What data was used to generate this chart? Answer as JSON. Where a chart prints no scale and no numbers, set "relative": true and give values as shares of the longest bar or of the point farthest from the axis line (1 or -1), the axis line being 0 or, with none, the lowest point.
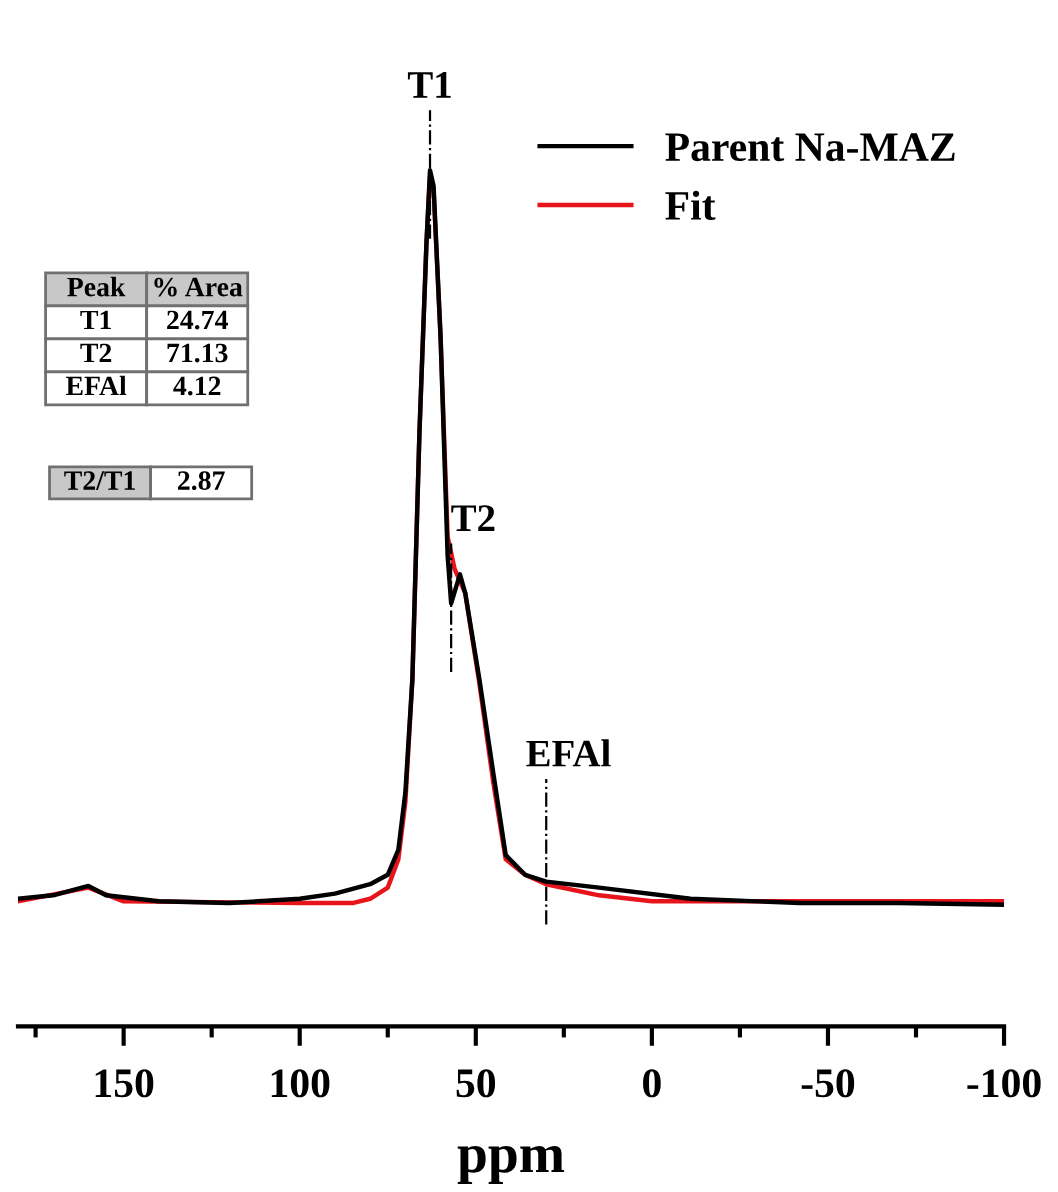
{
  "chart_data": {
    "type": "line",
    "relative": true,
    "xlabel": "ppm",
    "legend": "top right",
    "grid": false,
    "xlim": [
      180,
      -100
    ],
    "xticks": [
      {
        "value": 175,
        "label": null
      },
      150,
      {
        "value": 125,
        "label": null
      },
      100,
      {
        "value": 75,
        "label": null
      },
      50,
      {
        "value": 25,
        "label": null
      },
      0,
      {
        "value": -25,
        "label": null
      },
      -50,
      {
        "value": -75,
        "label": null
      },
      -100
    ],
    "series": [
      {
        "name": "Parent Na-MAZ",
        "color": "#000000",
        "x": [
          180,
          170,
          160,
          155,
          140,
          120,
          100,
          90,
          80,
          75,
          72,
          70,
          68,
          66,
          64,
          63,
          62,
          60,
          58,
          57,
          54.5,
          53,
          49,
          45,
          41.5,
          36,
          30,
          15,
          -11,
          -42,
          -70,
          -100
        ],
        "values": [
          0.149,
          0.153,
          0.164,
          0.153,
          0.146,
          0.144,
          0.149,
          0.155,
          0.166,
          0.177,
          0.206,
          0.273,
          0.406,
          0.694,
          0.916,
          1.0,
          0.982,
          0.805,
          0.55,
          0.494,
          0.528,
          0.506,
          0.406,
          0.295,
          0.2,
          0.177,
          0.169,
          0.162,
          0.149,
          0.144,
          0.144,
          0.142
        ]
      },
      {
        "name": "Fit",
        "color": "#e8141b",
        "x": [
          180,
          160,
          150,
          100,
          85,
          80,
          75,
          72,
          70,
          68,
          66,
          64,
          63,
          62,
          60,
          58,
          56,
          53,
          49,
          45,
          41.5,
          36,
          30,
          15,
          0,
          -100
        ],
        "values": [
          0.146,
          0.162,
          0.146,
          0.144,
          0.144,
          0.149,
          0.162,
          0.195,
          0.262,
          0.406,
          0.694,
          0.916,
          0.993,
          0.978,
          0.805,
          0.572,
          0.534,
          0.506,
          0.401,
          0.284,
          0.195,
          0.177,
          0.166,
          0.153,
          0.146,
          0.146
        ]
      }
    ],
    "annotations": [
      {
        "text": "T1",
        "x": 63,
        "y": 1.0
      },
      {
        "text": "T2",
        "x": 57,
        "y": 0.494
      },
      {
        "text": "EFAl",
        "x": 30,
        "y": 0.169
      },
      "Peak",
      "% Area",
      "T1",
      "24.74",
      "T2",
      "71.13",
      "EFAl",
      "4.12",
      "T2/T1",
      "2.87"
    ]
  }
}
